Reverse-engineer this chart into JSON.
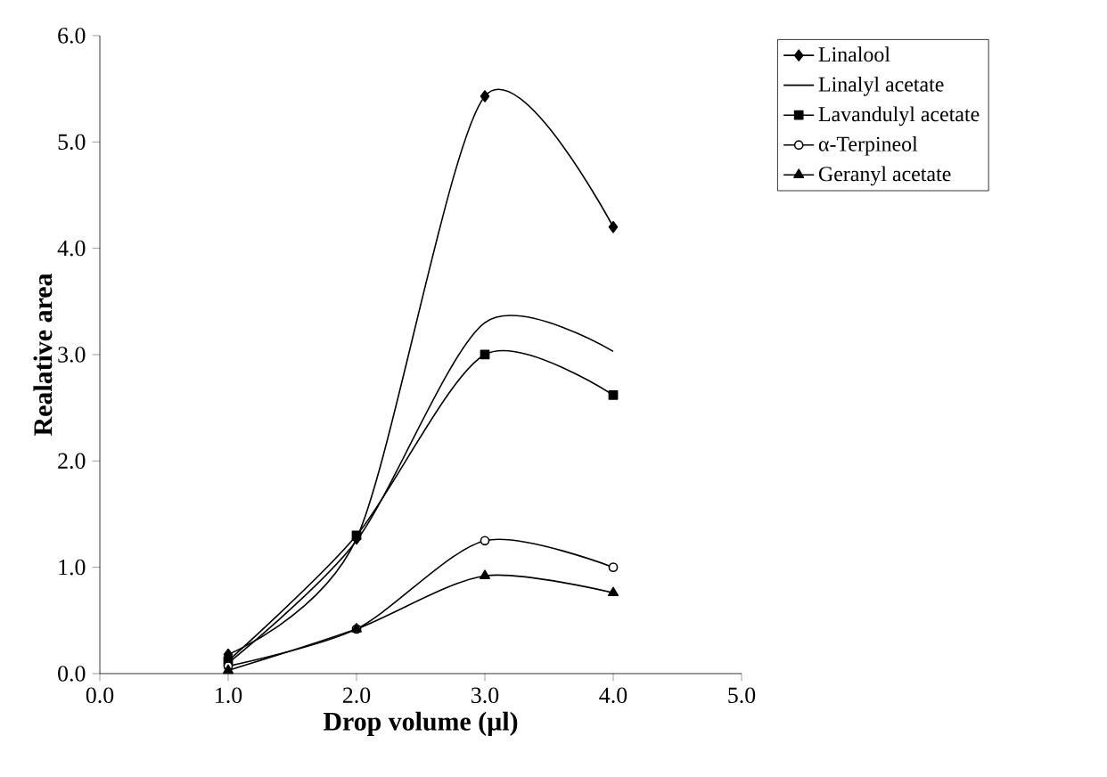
{
  "chart_data": {
    "type": "line",
    "xlabel": "Drop volume (µl)",
    "ylabel": "Realative area",
    "xlim": [
      0,
      5
    ],
    "ylim": [
      0,
      6
    ],
    "xticks": [
      {
        "value": 0,
        "label": "0.0"
      },
      {
        "value": 1,
        "label": "1.0"
      },
      {
        "value": 2,
        "label": "2.0"
      },
      {
        "value": 3,
        "label": "3.0"
      },
      {
        "value": 4,
        "label": "4.0"
      },
      {
        "value": 5,
        "label": "5.0"
      }
    ],
    "yticks": [
      {
        "value": 0,
        "label": "0.0"
      },
      {
        "value": 1,
        "label": "1.0"
      },
      {
        "value": 2,
        "label": "2.0"
      },
      {
        "value": 3,
        "label": "3.0"
      },
      {
        "value": 4,
        "label": "4.0"
      },
      {
        "value": 5,
        "label": "5.0"
      },
      {
        "value": 6,
        "label": "6.0"
      }
    ],
    "x": [
      1,
      2,
      3,
      4
    ],
    "series": [
      {
        "name": "Linalool",
        "color": "#000000",
        "marker": "diamond",
        "values": [
          0.18,
          1.27,
          5.43,
          4.2
        ]
      },
      {
        "name": "Linalyl acetate",
        "color": "#000000",
        "marker": "none",
        "values": [
          0.1,
          1.25,
          3.3,
          3.03
        ]
      },
      {
        "name": "Lavandulyl acetate",
        "color": "#000000",
        "marker": "square",
        "values": [
          0.12,
          1.3,
          3.0,
          2.62
        ]
      },
      {
        "name": "α-Terpineol",
        "color": "#000000",
        "marker": "circle",
        "values": [
          0.07,
          0.42,
          1.25,
          1.0
        ]
      },
      {
        "name": "Geranyl acetate",
        "color": "#000000",
        "marker": "triangle",
        "values": [
          0.03,
          0.42,
          0.92,
          0.76
        ]
      }
    ],
    "legend": "top right",
    "grid": false,
    "line_style": "solid"
  }
}
